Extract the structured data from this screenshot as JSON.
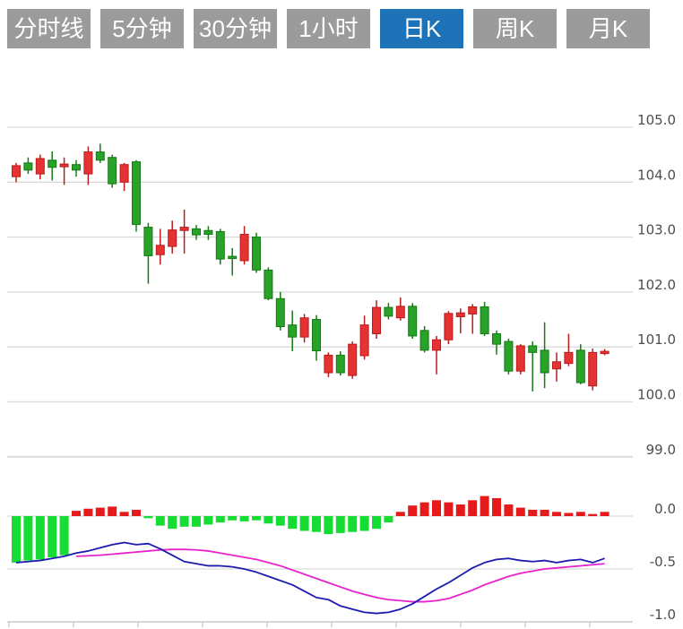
{
  "tabs": {
    "items": [
      {
        "label": "分时线"
      },
      {
        "label": "5分钟"
      },
      {
        "label": "30分钟"
      },
      {
        "label": "1小时"
      },
      {
        "label": "日K"
      },
      {
        "label": "周K"
      },
      {
        "label": "月K"
      }
    ],
    "active_index": 4,
    "active_label": "日K"
  },
  "colors": {
    "background": "#ffffff",
    "tab_bg": "#9b9b9b",
    "tab_active_bg": "#1e73b8",
    "tab_text": "#ffffff",
    "candle_up": "#e53333",
    "candle_up_border": "#b81c1c",
    "candle_down": "#28a228",
    "candle_down_border": "#157a15",
    "macd_up": "#e51a1a",
    "macd_down": "#16dd33",
    "dif_line": "#1c1cae",
    "dea_line": "#e822cc",
    "grid": "#d9d9d9",
    "axis_line": "#c9c9c9",
    "axis_text": "#4d4d4d"
  },
  "chart_data": {
    "type": "candlestick-with-macd",
    "title": "",
    "color_convention": "red-up-green-down",
    "price_axis": {
      "side": "right",
      "ticks": [
        105.0,
        104.0,
        103.0,
        102.0,
        101.0,
        100.0,
        99.0
      ],
      "range": [
        98.7,
        105.4
      ]
    },
    "candles_ohlc": [
      [
        104.1,
        104.35,
        104.0,
        104.3
      ],
      [
        104.35,
        104.45,
        104.15,
        104.22
      ],
      [
        104.15,
        104.5,
        104.05,
        104.43
      ],
      [
        104.4,
        104.56,
        104.03,
        104.27
      ],
      [
        104.28,
        104.45,
        103.95,
        104.33
      ],
      [
        104.32,
        104.4,
        104.1,
        104.22
      ],
      [
        104.15,
        104.65,
        103.95,
        104.55
      ],
      [
        104.55,
        104.7,
        104.35,
        104.4
      ],
      [
        104.45,
        104.5,
        103.9,
        103.97
      ],
      [
        104.0,
        104.35,
        103.84,
        104.32
      ],
      [
        104.37,
        104.4,
        103.1,
        103.23
      ],
      [
        103.18,
        103.26,
        102.15,
        102.66
      ],
      [
        102.68,
        103.15,
        102.5,
        102.85
      ],
      [
        102.83,
        103.3,
        102.7,
        103.13
      ],
      [
        103.12,
        103.5,
        102.7,
        103.18
      ],
      [
        103.15,
        103.22,
        102.95,
        103.04
      ],
      [
        103.12,
        103.2,
        102.95,
        103.05
      ],
      [
        103.1,
        103.15,
        102.5,
        102.6
      ],
      [
        102.65,
        102.8,
        102.3,
        102.62
      ],
      [
        102.57,
        103.2,
        102.5,
        103.05
      ],
      [
        103.0,
        103.08,
        102.35,
        102.4
      ],
      [
        102.4,
        102.45,
        101.85,
        101.88
      ],
      [
        101.88,
        102.0,
        101.3,
        101.37
      ],
      [
        101.4,
        101.66,
        100.92,
        101.18
      ],
      [
        101.18,
        101.6,
        101.08,
        101.53
      ],
      [
        101.5,
        101.58,
        100.75,
        100.93
      ],
      [
        100.53,
        100.9,
        100.45,
        100.85
      ],
      [
        100.85,
        100.92,
        100.48,
        100.53
      ],
      [
        100.48,
        101.1,
        100.42,
        101.05
      ],
      [
        100.84,
        101.57,
        100.77,
        101.4
      ],
      [
        101.24,
        101.85,
        101.15,
        101.72
      ],
      [
        101.72,
        101.8,
        101.5,
        101.56
      ],
      [
        101.53,
        101.9,
        101.48,
        101.74
      ],
      [
        101.74,
        101.8,
        101.15,
        101.2
      ],
      [
        101.3,
        101.38,
        100.9,
        100.94
      ],
      [
        100.94,
        101.2,
        100.5,
        101.13
      ],
      [
        101.13,
        101.65,
        101.05,
        101.61
      ],
      [
        101.55,
        101.7,
        101.25,
        101.62
      ],
      [
        101.6,
        101.78,
        101.24,
        101.73
      ],
      [
        101.73,
        101.82,
        101.2,
        101.24
      ],
      [
        101.24,
        101.3,
        100.86,
        101.05
      ],
      [
        101.1,
        101.15,
        100.5,
        100.56
      ],
      [
        100.56,
        101.05,
        100.5,
        101.02
      ],
      [
        101.02,
        101.1,
        100.19,
        100.9
      ],
      [
        100.94,
        101.45,
        100.25,
        100.53
      ],
      [
        100.6,
        100.9,
        100.37,
        100.73
      ],
      [
        100.7,
        101.24,
        100.65,
        100.9
      ],
      [
        100.94,
        101.05,
        100.32,
        100.35
      ],
      [
        100.29,
        100.97,
        100.21,
        100.9
      ],
      [
        100.88,
        100.96,
        100.85,
        100.92
      ]
    ],
    "macd": {
      "axis_ticks": [
        0.0,
        -0.5,
        -1.0
      ],
      "range": [
        -1.05,
        0.25
      ],
      "histogram": [
        -0.44,
        -0.42,
        -0.41,
        -0.39,
        -0.37,
        0.05,
        0.07,
        0.08,
        0.09,
        0.04,
        0.06,
        -0.02,
        -0.09,
        -0.12,
        -0.1,
        -0.1,
        -0.08,
        -0.06,
        -0.04,
        -0.05,
        -0.04,
        -0.07,
        -0.09,
        -0.12,
        -0.14,
        -0.15,
        -0.17,
        -0.16,
        -0.15,
        -0.14,
        -0.12,
        -0.06,
        0.04,
        0.1,
        0.13,
        0.15,
        0.13,
        0.11,
        0.15,
        0.19,
        0.17,
        0.11,
        0.08,
        0.06,
        0.06,
        0.04,
        0.03,
        0.04,
        0.02,
        0.04
      ],
      "dif": [
        -0.44,
        -0.43,
        -0.42,
        -0.4,
        -0.38,
        -0.35,
        -0.33,
        -0.3,
        -0.27,
        -0.25,
        -0.27,
        -0.26,
        -0.31,
        -0.37,
        -0.43,
        -0.45,
        -0.47,
        -0.47,
        -0.48,
        -0.5,
        -0.53,
        -0.57,
        -0.61,
        -0.65,
        -0.71,
        -0.77,
        -0.79,
        -0.85,
        -0.88,
        -0.91,
        -0.92,
        -0.91,
        -0.88,
        -0.83,
        -0.76,
        -0.69,
        -0.63,
        -0.56,
        -0.49,
        -0.44,
        -0.41,
        -0.4,
        -0.42,
        -0.43,
        -0.42,
        -0.44,
        -0.42,
        -0.41,
        -0.44,
        -0.4
      ],
      "dea": [
        null,
        null,
        null,
        null,
        null,
        -0.38,
        -0.375,
        -0.37,
        -0.36,
        -0.35,
        -0.34,
        -0.33,
        -0.32,
        -0.315,
        -0.315,
        -0.32,
        -0.33,
        -0.35,
        -0.37,
        -0.39,
        -0.41,
        -0.44,
        -0.47,
        -0.51,
        -0.55,
        -0.59,
        -0.63,
        -0.67,
        -0.71,
        -0.74,
        -0.77,
        -0.79,
        -0.8,
        -0.81,
        -0.81,
        -0.8,
        -0.78,
        -0.74,
        -0.7,
        -0.65,
        -0.61,
        -0.57,
        -0.54,
        -0.52,
        -0.5,
        -0.49,
        -0.48,
        -0.47,
        -0.46,
        -0.45
      ]
    }
  }
}
